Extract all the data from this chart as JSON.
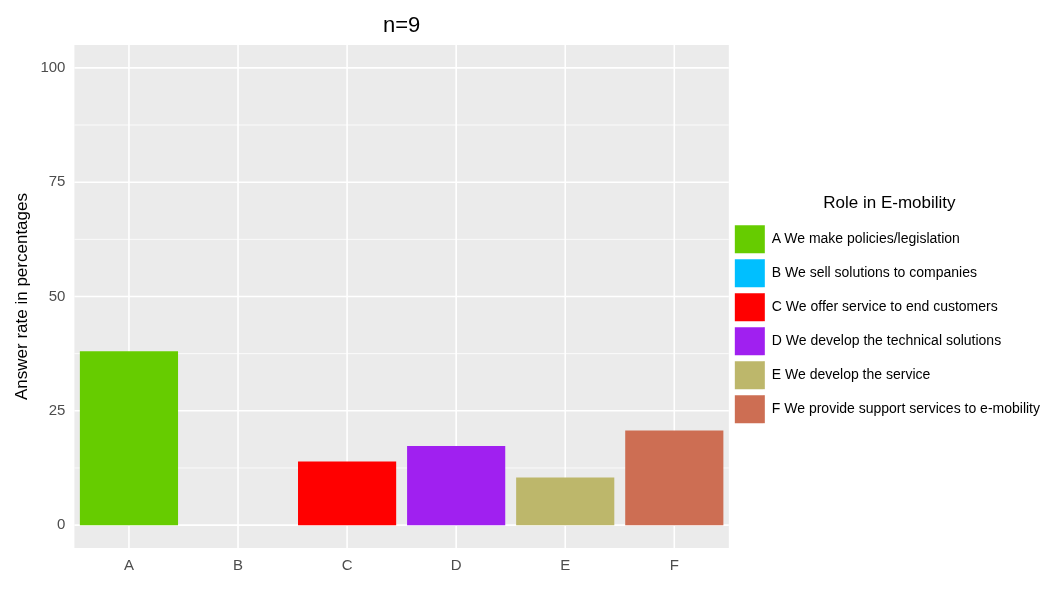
{
  "chart_data": {
    "type": "bar",
    "title": "n=9",
    "ylabel": "Answer rate in percentages",
    "legend_title": "Role in E-mobility",
    "categories": [
      "A",
      "B",
      "C",
      "D",
      "E",
      "F"
    ],
    "series": [
      {
        "name": "A We make policies/legislation",
        "color": "#66cc00",
        "values": [
          38,
          null,
          null,
          null,
          null,
          null
        ]
      },
      {
        "name": "B We sell solutions to companies",
        "color": "#00bfff",
        "values": [
          null,
          0,
          null,
          null,
          null,
          null
        ]
      },
      {
        "name": "C We offer service to end customers",
        "color": "#ff0000",
        "values": [
          null,
          null,
          13.9,
          null,
          null,
          null
        ]
      },
      {
        "name": "D We develop the technical solutions",
        "color": "#a020f0",
        "values": [
          null,
          null,
          null,
          17.3,
          null,
          null
        ]
      },
      {
        "name": "E We develop the service",
        "color": "#bdb76b",
        "values": [
          null,
          null,
          null,
          null,
          10.4,
          null
        ]
      },
      {
        "name": "F We provide support services to e-mobility",
        "color": "#cd6e53",
        "values": [
          null,
          null,
          null,
          null,
          null,
          20.7
        ]
      }
    ],
    "ylim": [
      -5,
      105
    ],
    "yticks": [
      0,
      25,
      50,
      75,
      100
    ],
    "grid": true,
    "legend": "right"
  }
}
